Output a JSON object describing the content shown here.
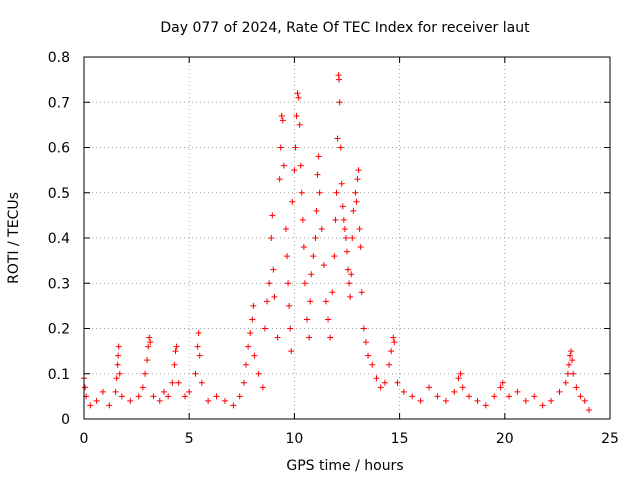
{
  "chart_data": {
    "type": "scatter",
    "title": "Day 077 of 2024, Rate Of TEC Index for receiver laut",
    "xlabel": "GPS time / hours",
    "ylabel": "ROTI / TECUs",
    "xlim": [
      0,
      25
    ],
    "ylim": [
      0,
      0.8
    ],
    "xticks": [
      0,
      5,
      10,
      15,
      20,
      25
    ],
    "yticks": [
      0,
      0.1,
      0.2,
      0.3,
      0.4,
      0.5,
      0.6,
      0.7,
      0.8
    ],
    "xtick_labels": [
      "0",
      "5",
      "10",
      "15",
      "20",
      "25"
    ],
    "ytick_labels": [
      "0",
      "0.1",
      "0.2",
      "0.3",
      "0.4",
      "0.5",
      "0.6",
      "0.7",
      "0.8"
    ],
    "grid": true,
    "marker": "+",
    "color": "#ff0000",
    "series": [
      {
        "name": "ROTI",
        "points": [
          [
            0.0,
            0.09
          ],
          [
            0.05,
            0.07
          ],
          [
            0.1,
            0.05
          ],
          [
            0.3,
            0.03
          ],
          [
            0.6,
            0.04
          ],
          [
            0.9,
            0.06
          ],
          [
            1.2,
            0.03
          ],
          [
            1.5,
            0.06
          ],
          [
            1.55,
            0.09
          ],
          [
            1.6,
            0.12
          ],
          [
            1.62,
            0.14
          ],
          [
            1.65,
            0.16
          ],
          [
            1.7,
            0.1
          ],
          [
            1.8,
            0.05
          ],
          [
            2.2,
            0.04
          ],
          [
            2.6,
            0.05
          ],
          [
            2.8,
            0.07
          ],
          [
            2.9,
            0.1
          ],
          [
            3.0,
            0.13
          ],
          [
            3.05,
            0.16
          ],
          [
            3.1,
            0.18
          ],
          [
            3.15,
            0.17
          ],
          [
            3.3,
            0.05
          ],
          [
            3.6,
            0.04
          ],
          [
            3.8,
            0.06
          ],
          [
            4.0,
            0.05
          ],
          [
            4.2,
            0.08
          ],
          [
            4.3,
            0.12
          ],
          [
            4.35,
            0.15
          ],
          [
            4.4,
            0.16
          ],
          [
            4.5,
            0.08
          ],
          [
            4.8,
            0.05
          ],
          [
            5.0,
            0.06
          ],
          [
            5.3,
            0.1
          ],
          [
            5.4,
            0.16
          ],
          [
            5.45,
            0.19
          ],
          [
            5.5,
            0.14
          ],
          [
            5.6,
            0.08
          ],
          [
            5.9,
            0.04
          ],
          [
            6.3,
            0.05
          ],
          [
            6.7,
            0.04
          ],
          [
            7.1,
            0.03
          ],
          [
            7.4,
            0.05
          ],
          [
            7.6,
            0.08
          ],
          [
            7.7,
            0.12
          ],
          [
            7.8,
            0.16
          ],
          [
            7.9,
            0.19
          ],
          [
            8.0,
            0.22
          ],
          [
            8.05,
            0.25
          ],
          [
            8.1,
            0.14
          ],
          [
            8.3,
            0.1
          ],
          [
            8.5,
            0.07
          ],
          [
            8.6,
            0.2
          ],
          [
            8.7,
            0.26
          ],
          [
            8.8,
            0.3
          ],
          [
            8.9,
            0.4
          ],
          [
            8.95,
            0.45
          ],
          [
            9.0,
            0.33
          ],
          [
            9.05,
            0.27
          ],
          [
            9.2,
            0.18
          ],
          [
            9.3,
            0.53
          ],
          [
            9.35,
            0.6
          ],
          [
            9.4,
            0.67
          ],
          [
            9.45,
            0.66
          ],
          [
            9.5,
            0.56
          ],
          [
            9.6,
            0.42
          ],
          [
            9.65,
            0.36
          ],
          [
            9.7,
            0.3
          ],
          [
            9.75,
            0.25
          ],
          [
            9.8,
            0.2
          ],
          [
            9.85,
            0.15
          ],
          [
            9.9,
            0.48
          ],
          [
            10.0,
            0.55
          ],
          [
            10.05,
            0.6
          ],
          [
            10.1,
            0.67
          ],
          [
            10.15,
            0.72
          ],
          [
            10.2,
            0.71
          ],
          [
            10.25,
            0.65
          ],
          [
            10.3,
            0.56
          ],
          [
            10.35,
            0.5
          ],
          [
            10.4,
            0.44
          ],
          [
            10.45,
            0.38
          ],
          [
            10.5,
            0.3
          ],
          [
            10.6,
            0.22
          ],
          [
            10.7,
            0.18
          ],
          [
            10.75,
            0.26
          ],
          [
            10.8,
            0.32
          ],
          [
            10.9,
            0.36
          ],
          [
            11.0,
            0.4
          ],
          [
            11.05,
            0.46
          ],
          [
            11.1,
            0.54
          ],
          [
            11.15,
            0.58
          ],
          [
            11.2,
            0.5
          ],
          [
            11.3,
            0.42
          ],
          [
            11.4,
            0.34
          ],
          [
            11.5,
            0.26
          ],
          [
            11.6,
            0.22
          ],
          [
            11.7,
            0.18
          ],
          [
            11.8,
            0.28
          ],
          [
            11.9,
            0.36
          ],
          [
            11.95,
            0.44
          ],
          [
            12.0,
            0.5
          ],
          [
            12.05,
            0.62
          ],
          [
            12.1,
            0.76
          ],
          [
            12.12,
            0.75
          ],
          [
            12.15,
            0.7
          ],
          [
            12.2,
            0.6
          ],
          [
            12.25,
            0.52
          ],
          [
            12.3,
            0.47
          ],
          [
            12.35,
            0.44
          ],
          [
            12.4,
            0.42
          ],
          [
            12.45,
            0.4
          ],
          [
            12.5,
            0.37
          ],
          [
            12.55,
            0.33
          ],
          [
            12.6,
            0.3
          ],
          [
            12.65,
            0.27
          ],
          [
            12.7,
            0.32
          ],
          [
            12.75,
            0.4
          ],
          [
            12.8,
            0.46
          ],
          [
            12.9,
            0.5
          ],
          [
            12.95,
            0.48
          ],
          [
            13.0,
            0.53
          ],
          [
            13.05,
            0.55
          ],
          [
            13.1,
            0.42
          ],
          [
            13.15,
            0.38
          ],
          [
            13.2,
            0.28
          ],
          [
            13.3,
            0.2
          ],
          [
            13.4,
            0.17
          ],
          [
            13.5,
            0.14
          ],
          [
            13.7,
            0.12
          ],
          [
            13.9,
            0.09
          ],
          [
            14.1,
            0.07
          ],
          [
            14.3,
            0.08
          ],
          [
            14.5,
            0.12
          ],
          [
            14.6,
            0.15
          ],
          [
            14.7,
            0.18
          ],
          [
            14.75,
            0.17
          ],
          [
            14.9,
            0.08
          ],
          [
            15.2,
            0.06
          ],
          [
            15.6,
            0.05
          ],
          [
            16.0,
            0.04
          ],
          [
            16.4,
            0.07
          ],
          [
            16.8,
            0.05
          ],
          [
            17.2,
            0.04
          ],
          [
            17.6,
            0.06
          ],
          [
            17.8,
            0.09
          ],
          [
            17.9,
            0.1
          ],
          [
            18.0,
            0.07
          ],
          [
            18.3,
            0.05
          ],
          [
            18.7,
            0.04
          ],
          [
            19.1,
            0.03
          ],
          [
            19.5,
            0.05
          ],
          [
            19.8,
            0.07
          ],
          [
            19.9,
            0.08
          ],
          [
            20.2,
            0.05
          ],
          [
            20.6,
            0.06
          ],
          [
            21.0,
            0.04
          ],
          [
            21.4,
            0.05
          ],
          [
            21.8,
            0.03
          ],
          [
            22.2,
            0.04
          ],
          [
            22.6,
            0.06
          ],
          [
            22.9,
            0.08
          ],
          [
            23.0,
            0.1
          ],
          [
            23.05,
            0.12
          ],
          [
            23.1,
            0.14
          ],
          [
            23.15,
            0.15
          ],
          [
            23.2,
            0.13
          ],
          [
            23.25,
            0.1
          ],
          [
            23.4,
            0.07
          ],
          [
            23.6,
            0.05
          ],
          [
            23.8,
            0.04
          ],
          [
            24.0,
            0.02
          ]
        ]
      }
    ]
  }
}
